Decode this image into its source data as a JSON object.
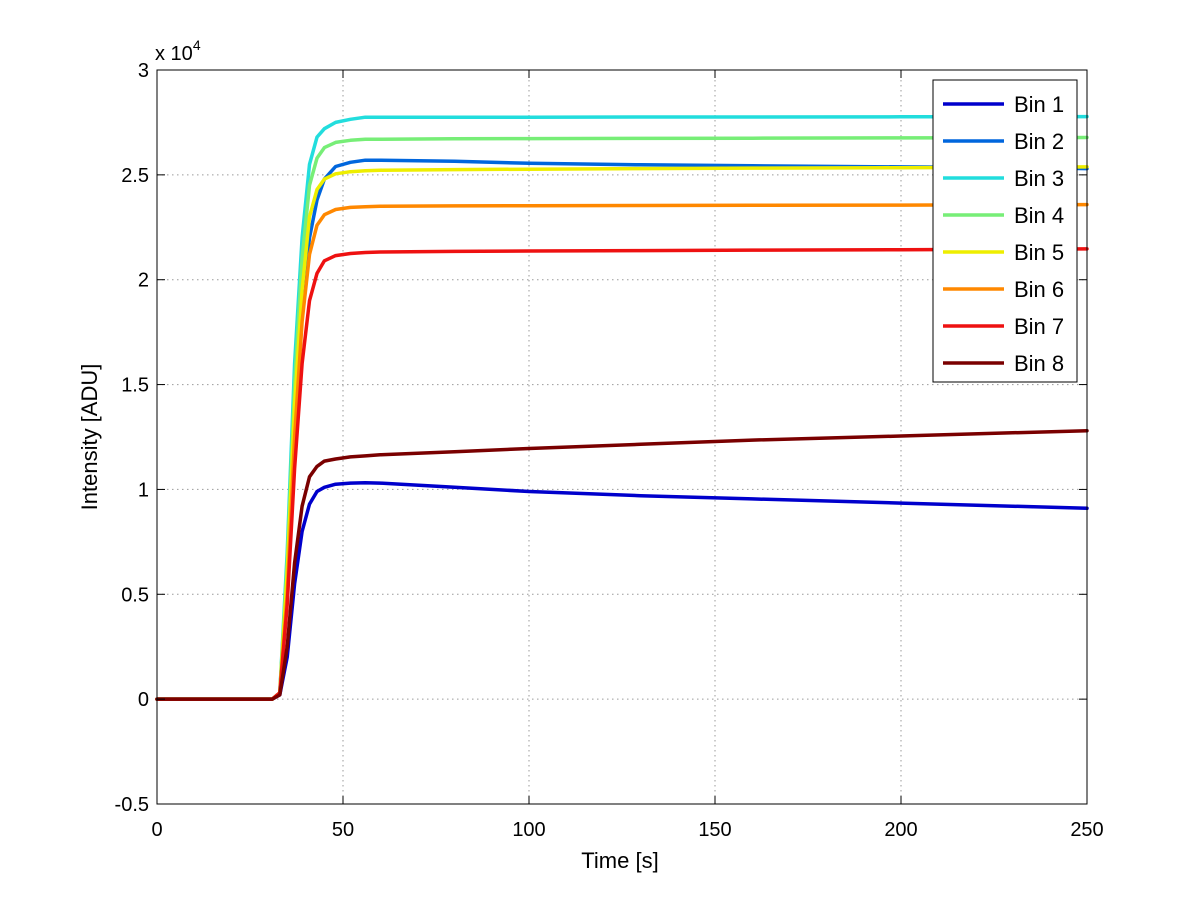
{
  "chart_data": {
    "type": "line",
    "title": "",
    "xlabel": "Time [s]",
    "ylabel": "Intensity [ADU]",
    "y_multiplier_label": "x 10",
    "y_multiplier_exponent": "4",
    "xlim": [
      0,
      250
    ],
    "ylim": [
      -0.5,
      3
    ],
    "xticks": [
      0,
      50,
      100,
      150,
      200,
      250
    ],
    "xtick_labels": [
      "0",
      "50",
      "100",
      "150",
      "200",
      "250"
    ],
    "yticks": [
      -0.5,
      0,
      0.5,
      1,
      1.5,
      2,
      2.5,
      3
    ],
    "ytick_labels": [
      "-0.5",
      "0",
      "0.5",
      "1",
      "1.5",
      "2",
      "2.5",
      "3"
    ],
    "grid": true,
    "legend_position": "top-right",
    "series": [
      {
        "name": "Bin 1",
        "color": "#0000cc",
        "x": [
          0,
          31,
          33,
          35,
          37,
          39,
          41,
          43,
          45,
          48,
          52,
          56,
          60,
          80,
          100,
          130,
          160,
          200,
          230,
          250
        ],
        "y": [
          0,
          0,
          0.02,
          0.2,
          0.55,
          0.8,
          0.93,
          0.99,
          1.01,
          1.025,
          1.03,
          1.032,
          1.03,
          1.01,
          0.99,
          0.97,
          0.955,
          0.935,
          0.92,
          0.91
        ]
      },
      {
        "name": "Bin 2",
        "color": "#0066dd",
        "x": [
          0,
          31,
          33,
          35,
          37,
          39,
          41,
          43,
          45,
          48,
          52,
          56,
          60,
          80,
          100,
          130,
          160,
          200,
          230,
          250
        ],
        "y": [
          0,
          0,
          0.03,
          0.6,
          1.4,
          1.9,
          2.2,
          2.38,
          2.48,
          2.54,
          2.56,
          2.57,
          2.57,
          2.565,
          2.555,
          2.548,
          2.543,
          2.538,
          2.535,
          2.53
        ]
      },
      {
        "name": "Bin 3",
        "color": "#22dddd",
        "x": [
          0,
          31,
          33,
          35,
          37,
          39,
          41,
          43,
          45,
          48,
          52,
          56,
          60,
          80,
          100,
          130,
          160,
          200,
          230,
          250
        ],
        "y": [
          0,
          0,
          0.03,
          0.7,
          1.6,
          2.2,
          2.55,
          2.68,
          2.72,
          2.75,
          2.765,
          2.775,
          2.775,
          2.775,
          2.775,
          2.776,
          2.776,
          2.777,
          2.777,
          2.778
        ]
      },
      {
        "name": "Bin 4",
        "color": "#77ee77",
        "x": [
          0,
          31,
          33,
          35,
          37,
          39,
          41,
          43,
          45,
          48,
          52,
          56,
          60,
          80,
          100,
          130,
          160,
          200,
          230,
          250
        ],
        "y": [
          0,
          0,
          0.03,
          0.65,
          1.5,
          2.1,
          2.45,
          2.58,
          2.63,
          2.655,
          2.665,
          2.67,
          2.67,
          2.672,
          2.673,
          2.674,
          2.675,
          2.676,
          2.677,
          2.678
        ]
      },
      {
        "name": "Bin 5",
        "color": "#eeee00",
        "x": [
          0,
          31,
          33,
          35,
          37,
          39,
          41,
          43,
          45,
          48,
          52,
          56,
          60,
          80,
          100,
          130,
          160,
          200,
          230,
          250
        ],
        "y": [
          0,
          0,
          0.03,
          0.6,
          1.4,
          1.95,
          2.3,
          2.43,
          2.48,
          2.505,
          2.515,
          2.52,
          2.522,
          2.525,
          2.527,
          2.53,
          2.532,
          2.534,
          2.536,
          2.538
        ]
      },
      {
        "name": "Bin 6",
        "color": "#ff8800",
        "x": [
          0,
          31,
          33,
          35,
          37,
          39,
          41,
          43,
          45,
          48,
          52,
          56,
          60,
          80,
          100,
          130,
          160,
          200,
          230,
          250
        ],
        "y": [
          0,
          0,
          0.03,
          0.5,
          1.25,
          1.8,
          2.12,
          2.26,
          2.31,
          2.335,
          2.345,
          2.348,
          2.35,
          2.352,
          2.353,
          2.354,
          2.355,
          2.356,
          2.357,
          2.358
        ]
      },
      {
        "name": "Bin 7",
        "color": "#ee1111",
        "x": [
          0,
          31,
          33,
          35,
          37,
          39,
          41,
          43,
          45,
          48,
          52,
          56,
          60,
          80,
          100,
          130,
          160,
          200,
          230,
          250
        ],
        "y": [
          0,
          0,
          0.03,
          0.45,
          1.1,
          1.6,
          1.9,
          2.03,
          2.09,
          2.115,
          2.125,
          2.13,
          2.132,
          2.135,
          2.137,
          2.139,
          2.141,
          2.143,
          2.145,
          2.147
        ]
      },
      {
        "name": "Bin 8",
        "color": "#7a0000",
        "x": [
          0,
          31,
          33,
          35,
          37,
          39,
          41,
          43,
          45,
          48,
          52,
          56,
          60,
          80,
          100,
          130,
          160,
          200,
          230,
          250
        ],
        "y": [
          0,
          0,
          0.02,
          0.25,
          0.65,
          0.92,
          1.06,
          1.11,
          1.135,
          1.145,
          1.155,
          1.16,
          1.165,
          1.18,
          1.195,
          1.215,
          1.235,
          1.255,
          1.27,
          1.28
        ]
      }
    ]
  }
}
